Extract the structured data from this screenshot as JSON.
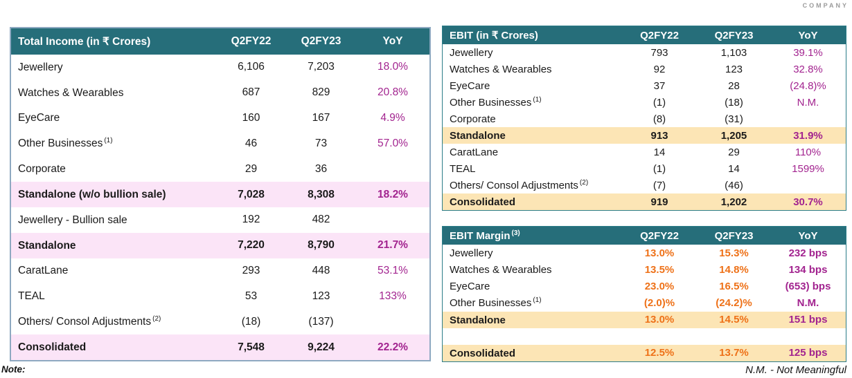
{
  "page": {
    "brand": "COMPANY",
    "note_label": "Note:",
    "nm_footnote": "N.M. - Not Meaningful"
  },
  "colors": {
    "header_teal": "#266E7A",
    "pink_highlight": "#FBE4F7",
    "wheat_highlight": "#FCE5B5",
    "yoy_magenta": "#A2238F",
    "margin_orange": "#EE7118",
    "income_border": "#8EA9C1"
  },
  "income_table": {
    "title": "Total Income (in ₹ Crores)",
    "columns": [
      "Q2FY22",
      "Q2FY23",
      "YoY"
    ],
    "rows": [
      {
        "name": "Jewellery",
        "q2fy22": "6,106",
        "q2fy23": "7,203",
        "yoy": "18.0%"
      },
      {
        "name": "Watches & Wearables",
        "q2fy22": "687",
        "q2fy23": "829",
        "yoy": "20.8%"
      },
      {
        "name": "EyeCare",
        "q2fy22": "160",
        "q2fy23": "167",
        "yoy": "4.9%"
      },
      {
        "name": "Other Businesses",
        "sup": "(1)",
        "q2fy22": "46",
        "q2fy23": "73",
        "yoy": "57.0%"
      },
      {
        "name": "Corporate",
        "q2fy22": "29",
        "q2fy23": "36",
        "yoy": ""
      },
      {
        "name": "Standalone (w/o bullion sale)",
        "q2fy22": "7,028",
        "q2fy23": "8,308",
        "yoy": "18.2%",
        "highlight": true
      },
      {
        "name": "Jewellery - Bullion sale",
        "q2fy22": "192",
        "q2fy23": "482",
        "yoy": ""
      },
      {
        "name": "Standalone",
        "q2fy22": "7,220",
        "q2fy23": "8,790",
        "yoy": "21.7%",
        "highlight": true
      },
      {
        "name": "CaratLane",
        "q2fy22": "293",
        "q2fy23": "448",
        "yoy": "53.1%"
      },
      {
        "name": "TEAL",
        "q2fy22": "53",
        "q2fy23": "123",
        "yoy": "133%"
      },
      {
        "name": "Others/ Consol Adjustments",
        "sup": "(2)",
        "q2fy22": "(18)",
        "q2fy23": "(137)",
        "yoy": ""
      },
      {
        "name": "Consolidated",
        "q2fy22": "7,548",
        "q2fy23": "9,224",
        "yoy": "22.2%",
        "highlight": true
      }
    ]
  },
  "ebit_table": {
    "title": "EBIT (in ₹ Crores)",
    "columns": [
      "Q2FY22",
      "Q2FY23",
      "YoY"
    ],
    "rows": [
      {
        "name": "Jewellery",
        "q2fy22": "793",
        "q2fy23": "1,103",
        "yoy": "39.1%"
      },
      {
        "name": "Watches & Wearables",
        "q2fy22": "92",
        "q2fy23": "123",
        "yoy": "32.8%"
      },
      {
        "name": "EyeCare",
        "q2fy22": "37",
        "q2fy23": "28",
        "yoy": "(24.8)%"
      },
      {
        "name": "Other Businesses",
        "sup": "(1)",
        "q2fy22": "(1)",
        "q2fy23": "(18)",
        "yoy": "N.M."
      },
      {
        "name": "Corporate",
        "q2fy22": "(8)",
        "q2fy23": "(31)",
        "yoy": ""
      },
      {
        "name": "Standalone",
        "q2fy22": "913",
        "q2fy23": "1,205",
        "yoy": "31.9%",
        "highlight": true
      },
      {
        "name": "CaratLane",
        "q2fy22": "14",
        "q2fy23": "29",
        "yoy": "110%"
      },
      {
        "name": "TEAL",
        "q2fy22": "(1)",
        "q2fy23": "14",
        "yoy": "1599%"
      },
      {
        "name": "Others/ Consol Adjustments",
        "sup": "(2)",
        "q2fy22": "(7)",
        "q2fy23": "(46)",
        "yoy": ""
      },
      {
        "name": "Consolidated",
        "q2fy22": "919",
        "q2fy23": "1,202",
        "yoy": "30.7%",
        "highlight": true
      }
    ]
  },
  "ebit_margin_table": {
    "title": "EBIT Margin",
    "title_sup": "(3)",
    "columns": [
      "Q2FY22",
      "Q2FY23",
      "YoY"
    ],
    "rows": [
      {
        "name": "Jewellery",
        "q2fy22": "13.0%",
        "q2fy23": "15.3%",
        "yoy": "232 bps"
      },
      {
        "name": "Watches & Wearables",
        "q2fy22": "13.5%",
        "q2fy23": "14.8%",
        "yoy": "134 bps"
      },
      {
        "name": "EyeCare",
        "q2fy22": "23.0%",
        "q2fy23": "16.5%",
        "yoy": "(653) bps"
      },
      {
        "name": "Other Businesses",
        "sup": "(1)",
        "q2fy22": "(2.0)%",
        "q2fy23": "(24.2)%",
        "yoy": "N.M."
      },
      {
        "name": "Standalone",
        "q2fy22": "13.0%",
        "q2fy23": "14.5%",
        "yoy": "151 bps",
        "highlight": true
      },
      {
        "name": "",
        "q2fy22": "",
        "q2fy23": "",
        "yoy": ""
      },
      {
        "name": "Consolidated",
        "q2fy22": "12.5%",
        "q2fy23": "13.7%",
        "yoy": "125 bps",
        "highlight": true
      }
    ]
  }
}
